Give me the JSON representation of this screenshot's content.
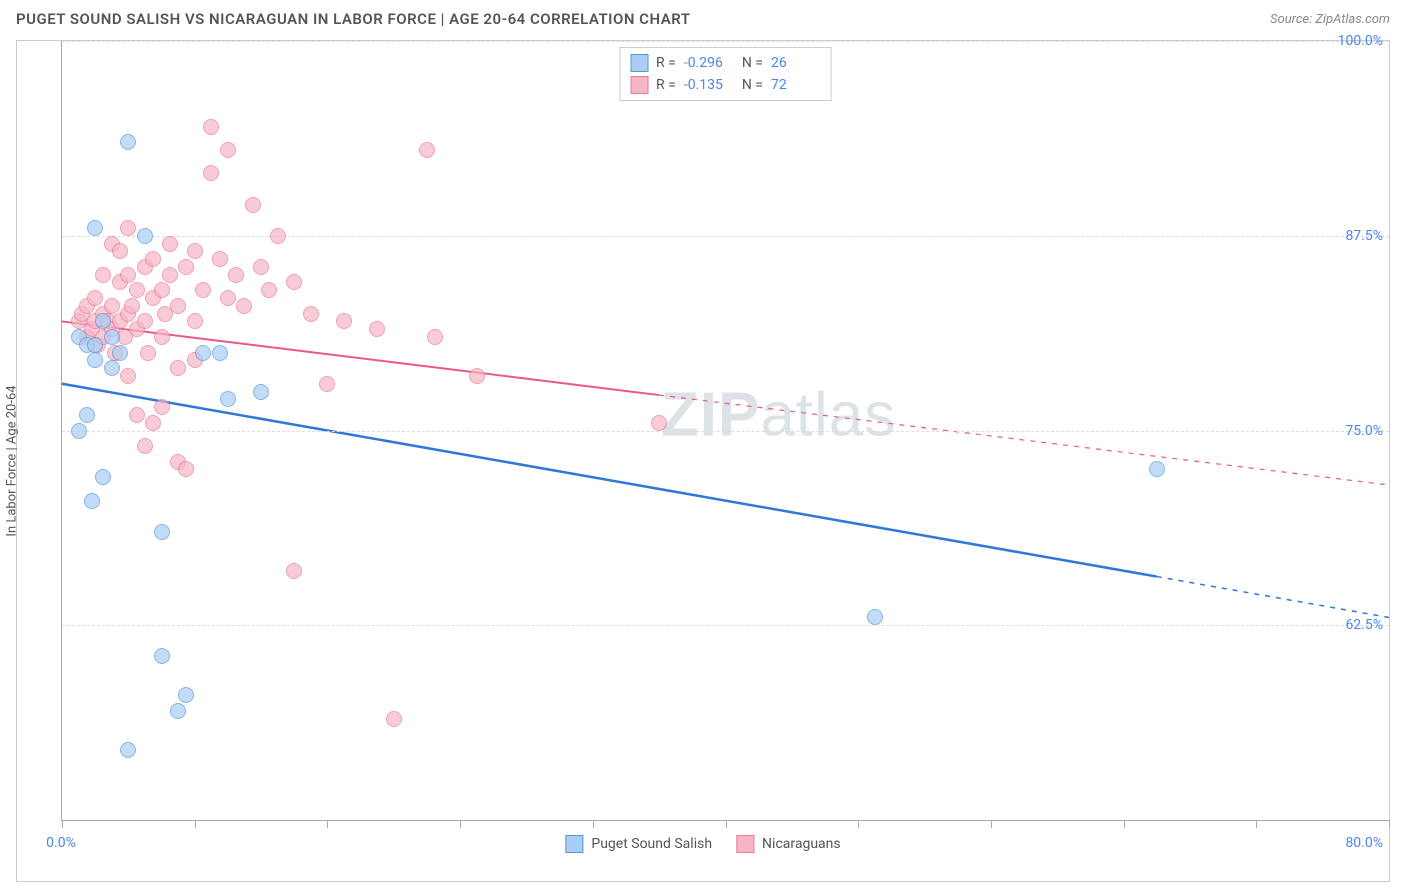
{
  "title": "PUGET SOUND SALISH VS NICARAGUAN IN LABOR FORCE | AGE 20-64 CORRELATION CHART",
  "source": "Source: ZipAtlas.com",
  "ylabel": "In Labor Force | Age 20-64",
  "watermark_a": "ZIP",
  "watermark_b": "atlas",
  "chart": {
    "type": "scatter-with-trendlines",
    "background_color": "#ffffff",
    "grid_color": "#dddddd",
    "axis_color": "#aaaaaa",
    "xlim": [
      0,
      80
    ],
    "ylim": [
      50,
      100
    ],
    "xticks_minor": [
      0,
      8,
      16,
      24,
      32,
      40,
      48,
      56,
      64,
      72,
      80
    ],
    "xtick_labels": {
      "left": "0.0%",
      "right": "80.0%"
    },
    "yticks": [
      62.5,
      75.0,
      87.5,
      100.0
    ],
    "ytick_labels": [
      "62.5%",
      "75.0%",
      "87.5%",
      "100.0%"
    ],
    "label_fontsize": 14,
    "label_color": "#4a86e8",
    "series": [
      {
        "id": "puget",
        "name": "Puget Sound Salish",
        "fill": "#a9cef4",
        "stroke": "#5a96d8",
        "r_label": "R =",
        "r_value": "-0.296",
        "n_label": "N =",
        "n_value": "26",
        "trend": {
          "x1": 0,
          "y1": 78.0,
          "x2": 80,
          "y2": 63.0,
          "solid_until_x": 66,
          "color": "#2f78d7",
          "width": 2.5
        },
        "points": [
          [
            1.0,
            81.0
          ],
          [
            1.5,
            80.5
          ],
          [
            2.0,
            80.5
          ],
          [
            1.0,
            75.0
          ],
          [
            1.8,
            70.5
          ],
          [
            2.0,
            88.0
          ],
          [
            4.0,
            93.5
          ],
          [
            5.0,
            87.5
          ],
          [
            6.0,
            68.5
          ],
          [
            6.0,
            60.5
          ],
          [
            7.5,
            58.0
          ],
          [
            8.5,
            80.0
          ],
          [
            9.5,
            80.0
          ],
          [
            10.0,
            77.0
          ],
          [
            12.0,
            77.5
          ],
          [
            4.0,
            54.5
          ],
          [
            7.0,
            57.0
          ],
          [
            49.0,
            63.0
          ],
          [
            66.0,
            72.5
          ],
          [
            2.0,
            79.5
          ],
          [
            2.5,
            82.0
          ],
          [
            3.0,
            81.0
          ],
          [
            3.0,
            79.0
          ],
          [
            3.5,
            80.0
          ],
          [
            1.5,
            76.0
          ],
          [
            2.5,
            72.0
          ]
        ]
      },
      {
        "id": "nica",
        "name": "Nicaraguans",
        "fill": "#f7b6c6",
        "stroke": "#e87b97",
        "r_label": "R =",
        "r_value": "-0.135",
        "n_label": "N =",
        "n_value": "72",
        "trend": {
          "x1": 0,
          "y1": 82.0,
          "x2": 80,
          "y2": 71.5,
          "solid_until_x": 36,
          "color": "#e85a85",
          "width": 2
        },
        "points": [
          [
            1.0,
            82.0
          ],
          [
            1.2,
            82.5
          ],
          [
            1.5,
            81.0
          ],
          [
            1.5,
            83.0
          ],
          [
            1.8,
            81.5
          ],
          [
            2.0,
            82.0
          ],
          [
            2.0,
            83.5
          ],
          [
            2.2,
            80.5
          ],
          [
            2.5,
            81.0
          ],
          [
            2.5,
            82.5
          ],
          [
            2.8,
            82.0
          ],
          [
            3.0,
            81.5
          ],
          [
            3.0,
            83.0
          ],
          [
            3.2,
            80.0
          ],
          [
            3.5,
            82.0
          ],
          [
            3.5,
            84.5
          ],
          [
            3.8,
            81.0
          ],
          [
            4.0,
            82.5
          ],
          [
            4.0,
            85.0
          ],
          [
            4.2,
            83.0
          ],
          [
            4.5,
            81.5
          ],
          [
            4.5,
            84.0
          ],
          [
            5.0,
            82.0
          ],
          [
            5.0,
            85.5
          ],
          [
            5.2,
            80.0
          ],
          [
            5.5,
            83.5
          ],
          [
            5.5,
            86.0
          ],
          [
            6.0,
            81.0
          ],
          [
            6.0,
            84.0
          ],
          [
            6.2,
            82.5
          ],
          [
            6.5,
            85.0
          ],
          [
            7.0,
            83.0
          ],
          [
            7.0,
            79.0
          ],
          [
            7.5,
            85.5
          ],
          [
            8.0,
            82.0
          ],
          [
            8.0,
            86.5
          ],
          [
            8.5,
            84.0
          ],
          [
            9.0,
            91.5
          ],
          [
            9.5,
            86.0
          ],
          [
            10.0,
            83.5
          ],
          [
            10.0,
            93.0
          ],
          [
            10.5,
            85.0
          ],
          [
            11.0,
            83.0
          ],
          [
            11.5,
            89.5
          ],
          [
            12.0,
            85.5
          ],
          [
            12.5,
            84.0
          ],
          [
            13.0,
            87.5
          ],
          [
            14.0,
            84.5
          ],
          [
            15.0,
            82.5
          ],
          [
            16.0,
            78.0
          ],
          [
            17.0,
            82.0
          ],
          [
            19.0,
            81.5
          ],
          [
            22.0,
            93.0
          ],
          [
            22.5,
            81.0
          ],
          [
            4.0,
            78.5
          ],
          [
            4.5,
            76.0
          ],
          [
            5.0,
            74.0
          ],
          [
            5.5,
            75.5
          ],
          [
            7.0,
            73.0
          ],
          [
            7.5,
            72.5
          ],
          [
            8.0,
            79.5
          ],
          [
            14.0,
            66.0
          ],
          [
            20.0,
            56.5
          ],
          [
            25.0,
            78.5
          ],
          [
            36.0,
            75.5
          ],
          [
            3.0,
            87.0
          ],
          [
            3.5,
            86.5
          ],
          [
            4.0,
            88.0
          ],
          [
            6.5,
            87.0
          ],
          [
            9.0,
            94.5
          ],
          [
            2.5,
            85.0
          ],
          [
            6.0,
            76.5
          ]
        ]
      }
    ]
  }
}
